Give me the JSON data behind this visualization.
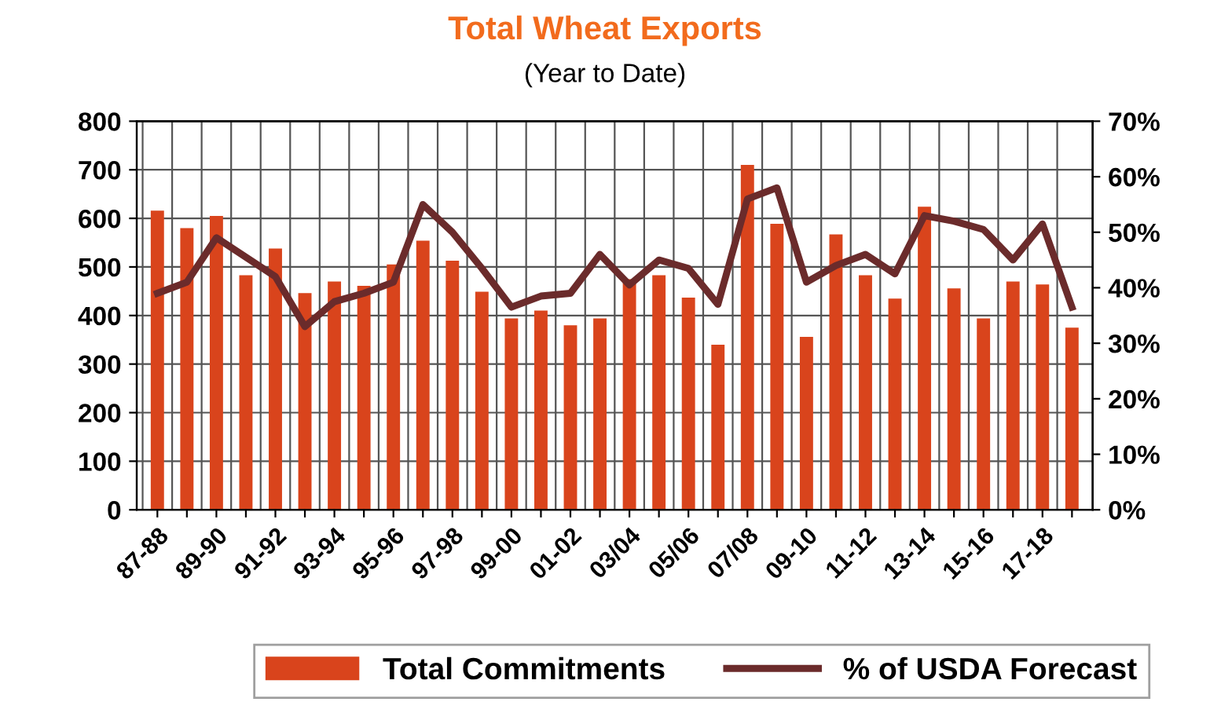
{
  "chart_data": {
    "type": "bar",
    "title": "Total Wheat Exports",
    "subtitle": "(Year to Date)",
    "categories": [
      "87-88",
      null,
      "89-90",
      null,
      "91-92",
      null,
      "93-94",
      null,
      "95-96",
      null,
      "97-98",
      null,
      "99-00",
      null,
      "01-02",
      null,
      "03/04",
      null,
      "05/06",
      null,
      "07/08",
      null,
      "09-10",
      null,
      "11-12",
      null,
      "13-14",
      null,
      "15-16",
      null,
      "17-18",
      null
    ],
    "series": [
      {
        "name": "Total Commitments",
        "color": "#d9441c",
        "values": [
          616,
          580,
          605,
          483,
          538,
          446,
          470,
          461,
          505,
          554,
          513,
          449,
          394,
          410,
          380,
          394,
          475,
          483,
          437,
          340,
          710,
          589,
          356,
          567,
          483,
          435,
          624,
          456,
          394,
          470,
          464,
          375
        ]
      },
      {
        "name": "% of USDA Forecast",
        "type": "line",
        "axis": "y2",
        "color": "#6b2b2b",
        "values": [
          39,
          41,
          49,
          45.5,
          42,
          33,
          37.5,
          39,
          41,
          55,
          50,
          43.5,
          36.5,
          38.5,
          39,
          46,
          40.5,
          45,
          43.5,
          37,
          56,
          58,
          41,
          44,
          46,
          42.5,
          53,
          52,
          50.5,
          45,
          51.5,
          36.5
        ]
      }
    ],
    "ylim": [
      0,
      800
    ],
    "yticks": [
      0,
      100,
      200,
      300,
      400,
      500,
      600,
      700,
      800
    ],
    "y2lim": [
      0,
      70
    ],
    "y2ticks": [
      {
        "value": 0,
        "label": "0%"
      },
      {
        "value": 10,
        "label": "10%"
      },
      {
        "value": 20,
        "label": "20%"
      },
      {
        "value": 30,
        "label": "30%"
      },
      {
        "value": 40,
        "label": "40%"
      },
      {
        "value": 50,
        "label": "50%"
      },
      {
        "value": 60,
        "label": "60%"
      },
      {
        "value": 70,
        "label": "70%"
      }
    ],
    "grid": true,
    "legend": "bottom"
  }
}
